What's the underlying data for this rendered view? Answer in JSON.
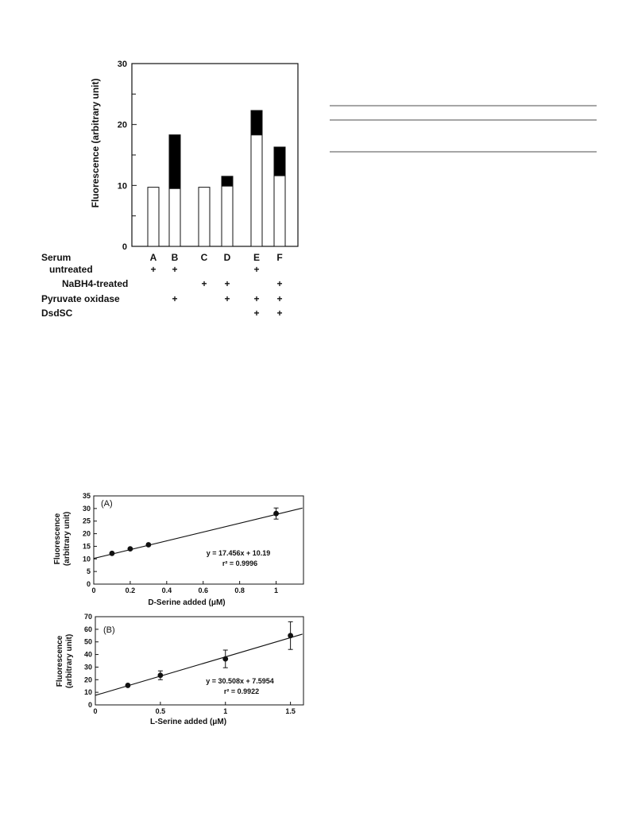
{
  "chart_data": [
    {
      "type": "bar",
      "stacked": true,
      "ylabel": "Fluorescence (arbitrary unit)",
      "ylim": [
        0,
        30
      ],
      "yticks": [
        "0",
        "10",
        "20",
        "30"
      ],
      "categories": [
        "A",
        "B",
        "C",
        "D",
        "E",
        "F"
      ],
      "series": [
        {
          "color": "#ffffff",
          "values": [
            9.7,
            9.5,
            9.7,
            9.9,
            18.3,
            11.6
          ]
        },
        {
          "color": "#000000",
          "values": [
            0,
            8.8,
            0,
            1.6,
            4.0,
            4.7
          ]
        }
      ],
      "condition_table": {
        "header": "Serum",
        "rows": [
          {
            "label": "untreated",
            "marks": [
              "+",
              "+",
              "",
              "",
              "+",
              ""
            ]
          },
          {
            "label": "NaBH4-treated",
            "marks": [
              "",
              "",
              "+",
              "+",
              "",
              "+"
            ]
          },
          {
            "label": "Pyruvate oxidase",
            "marks": [
              "",
              "+",
              "",
              "+",
              "+",
              "+"
            ]
          },
          {
            "label": "DsdSC",
            "marks": [
              "",
              "",
              "",
              "",
              "+",
              "+"
            ]
          }
        ]
      }
    },
    {
      "type": "scatter",
      "panel": "(A)",
      "xlabel": "D-Serine added (μM)",
      "ylabel_line1": "Fluorescence",
      "ylabel_line2": "(arbitrary unit)",
      "xlim": [
        0,
        1.15
      ],
      "ylim": [
        0,
        35
      ],
      "xticks": [
        0,
        0.2,
        0.4,
        0.6,
        0.8,
        1
      ],
      "xtick_labels": [
        "0",
        "0.2",
        "0.4",
        "0.6",
        "0.8",
        "1"
      ],
      "yticks": [
        0,
        5,
        10,
        15,
        20,
        25,
        30,
        35
      ],
      "ytick_labels": [
        "0",
        "5",
        "10",
        "15",
        "20",
        "25",
        "30",
        "35"
      ],
      "points": [
        {
          "x": 0.1,
          "y": 12.2,
          "err": 0
        },
        {
          "x": 0.2,
          "y": 14.0,
          "err": 0
        },
        {
          "x": 0.3,
          "y": 15.6,
          "err": 0
        },
        {
          "x": 1.0,
          "y": 28.0,
          "err": 2.2
        }
      ],
      "fit": {
        "slope": 17.456,
        "intercept": 10.19
      },
      "equation": "y = 17.456x + 10.19",
      "r2": "r² = 0.9996"
    },
    {
      "type": "scatter",
      "panel": "(B)",
      "xlabel": "L-Serine added (μM)",
      "ylabel_line1": "Fluorescence",
      "ylabel_line2": "(arbitrary unit)",
      "xlim": [
        0,
        1.6
      ],
      "ylim": [
        0,
        70
      ],
      "xticks": [
        0,
        0.5,
        1,
        1.5
      ],
      "xtick_labels": [
        "0",
        "0.5",
        "1",
        "1.5"
      ],
      "yticks": [
        0,
        10,
        20,
        30,
        40,
        50,
        60,
        70
      ],
      "ytick_labels": [
        "0",
        "10",
        "20",
        "30",
        "40",
        "50",
        "60",
        "70"
      ],
      "points": [
        {
          "x": 0.25,
          "y": 15.5,
          "err": 0
        },
        {
          "x": 0.5,
          "y": 23.5,
          "err": 3.5
        },
        {
          "x": 1.0,
          "y": 36.5,
          "err": 7.0
        },
        {
          "x": 1.5,
          "y": 55.0,
          "err": 11.0
        }
      ],
      "fit": {
        "slope": 30.508,
        "intercept": 7.5954
      },
      "equation": "y = 30.508x + 7.5954",
      "r2": "r² = 0.9922"
    }
  ],
  "colors": {
    "ink": "#111111",
    "fill_white": "#ffffff",
    "fill_black": "#000000"
  }
}
